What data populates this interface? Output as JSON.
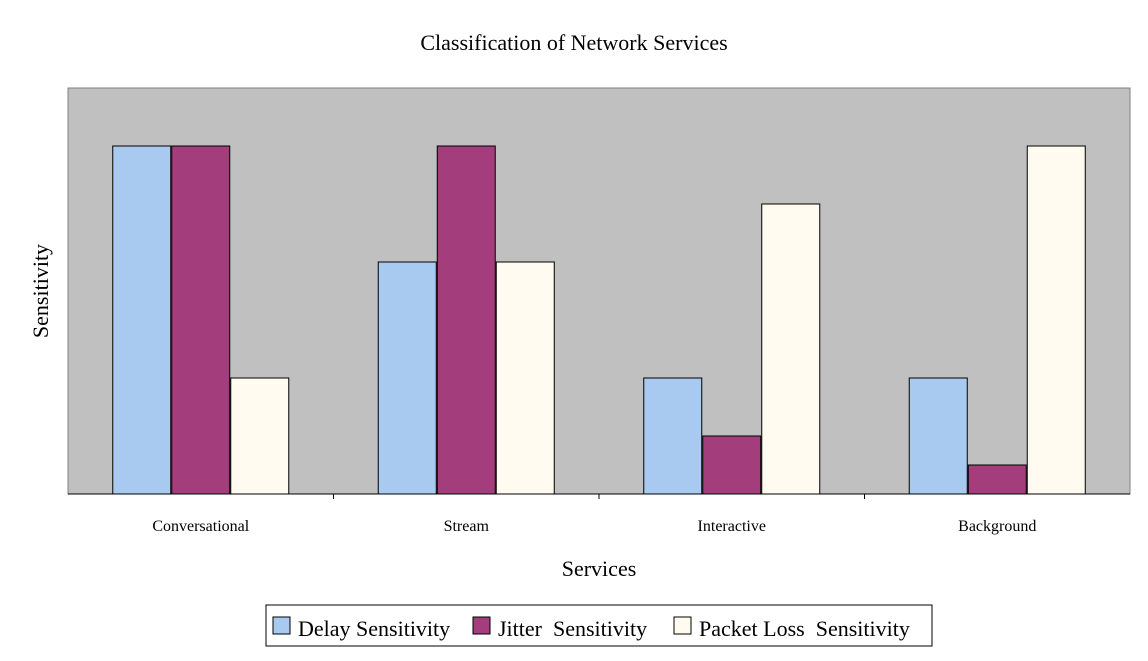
{
  "chart_data": {
    "type": "bar",
    "title": "Classification of Network Services",
    "xlabel": "Services",
    "ylabel": "Sensitivity",
    "categories": [
      "Conversational",
      "Stream",
      "Interactive",
      "Background"
    ],
    "series": [
      {
        "name": "Delay Sensitivity",
        "values": [
          6,
          4,
          2,
          2
        ],
        "color": "#a9caf0"
      },
      {
        "name": "Jitter  Sensitivity",
        "values": [
          6,
          6,
          1,
          0.5
        ],
        "color": "#a33d7c"
      },
      {
        "name": "Packet Loss  Sensitivity",
        "values": [
          2,
          4,
          5,
          6
        ],
        "color": "#fffbf0"
      }
    ],
    "ylim": [
      0,
      7
    ],
    "y_ticks_shown": false,
    "grid": false,
    "plot_background": "#c0c0c0",
    "legend_position": "bottom-center"
  }
}
